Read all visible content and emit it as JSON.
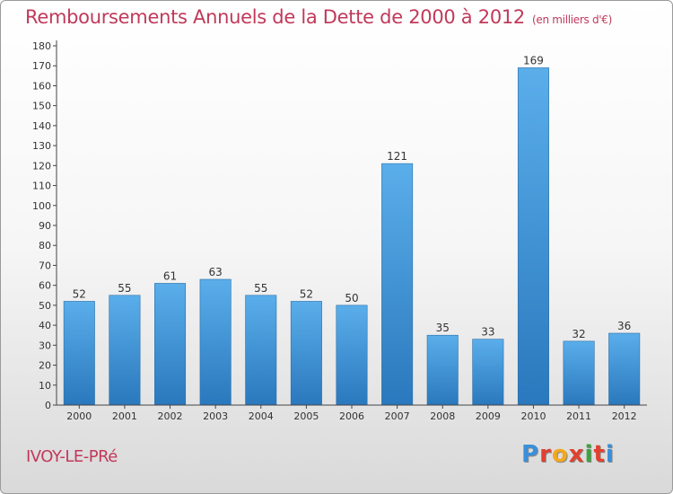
{
  "title": "Remboursements Annuels de la Dette de 2000 à 2012",
  "subtitle": "(en milliers d'€)",
  "commune": "IVOY-LE-PRé",
  "logo": {
    "letters": [
      "P",
      "r",
      "o",
      "x",
      "i",
      "t",
      "i"
    ],
    "colors": [
      "#3a8fd8",
      "#e0412f",
      "#f2a81d",
      "#e0412f",
      "#3aa53a",
      "#e0412f",
      "#3a8fd8"
    ]
  },
  "chart_data": {
    "type": "bar",
    "categories": [
      "2000",
      "2001",
      "2002",
      "2003",
      "2004",
      "2005",
      "2006",
      "2007",
      "2008",
      "2009",
      "2010",
      "2011",
      "2012"
    ],
    "values": [
      52,
      55,
      61,
      63,
      55,
      52,
      50,
      121,
      35,
      33,
      169,
      32,
      36
    ],
    "ylim": [
      0,
      180
    ],
    "ytick_step": 10,
    "grid": false,
    "bar_color": "#3a90d9",
    "bar_color_light": "#5aaeea",
    "bar_color_dark": "#2a78bd"
  }
}
